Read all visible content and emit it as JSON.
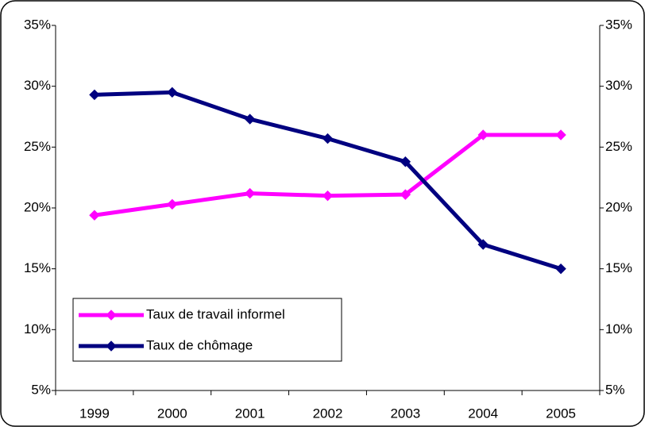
{
  "chart_data": {
    "type": "line",
    "categories": [
      "1999",
      "2000",
      "2001",
      "2002",
      "2003",
      "2004",
      "2005"
    ],
    "series": [
      {
        "name": "Taux de travail informel",
        "color": "#ff00ff",
        "values": [
          19.4,
          20.3,
          21.2,
          21.0,
          21.1,
          26.0,
          26.0
        ]
      },
      {
        "name": "Taux de chômage",
        "color": "#000080",
        "values": [
          29.3,
          29.5,
          27.3,
          25.7,
          23.8,
          17.0,
          15.0
        ]
      }
    ],
    "ylim": [
      5,
      35
    ],
    "yticks": [
      {
        "value": 5,
        "label": "5%"
      },
      {
        "value": 10,
        "label": "10%"
      },
      {
        "value": 15,
        "label": "15%"
      },
      {
        "value": 20,
        "label": "20%"
      },
      {
        "value": 25,
        "label": "25%"
      },
      {
        "value": 30,
        "label": "30%"
      },
      {
        "value": 35,
        "label": "35%"
      }
    ],
    "y2lim": [
      5,
      35
    ],
    "y2ticks": [
      {
        "value": 5,
        "label": "5%"
      },
      {
        "value": 10,
        "label": "10%"
      },
      {
        "value": 15,
        "label": "15%"
      },
      {
        "value": 20,
        "label": "20%"
      },
      {
        "value": 25,
        "label": "25%"
      },
      {
        "value": 30,
        "label": "30%"
      },
      {
        "value": 35,
        "label": "35%"
      }
    ],
    "grid": false,
    "legend": "bottom-left"
  }
}
